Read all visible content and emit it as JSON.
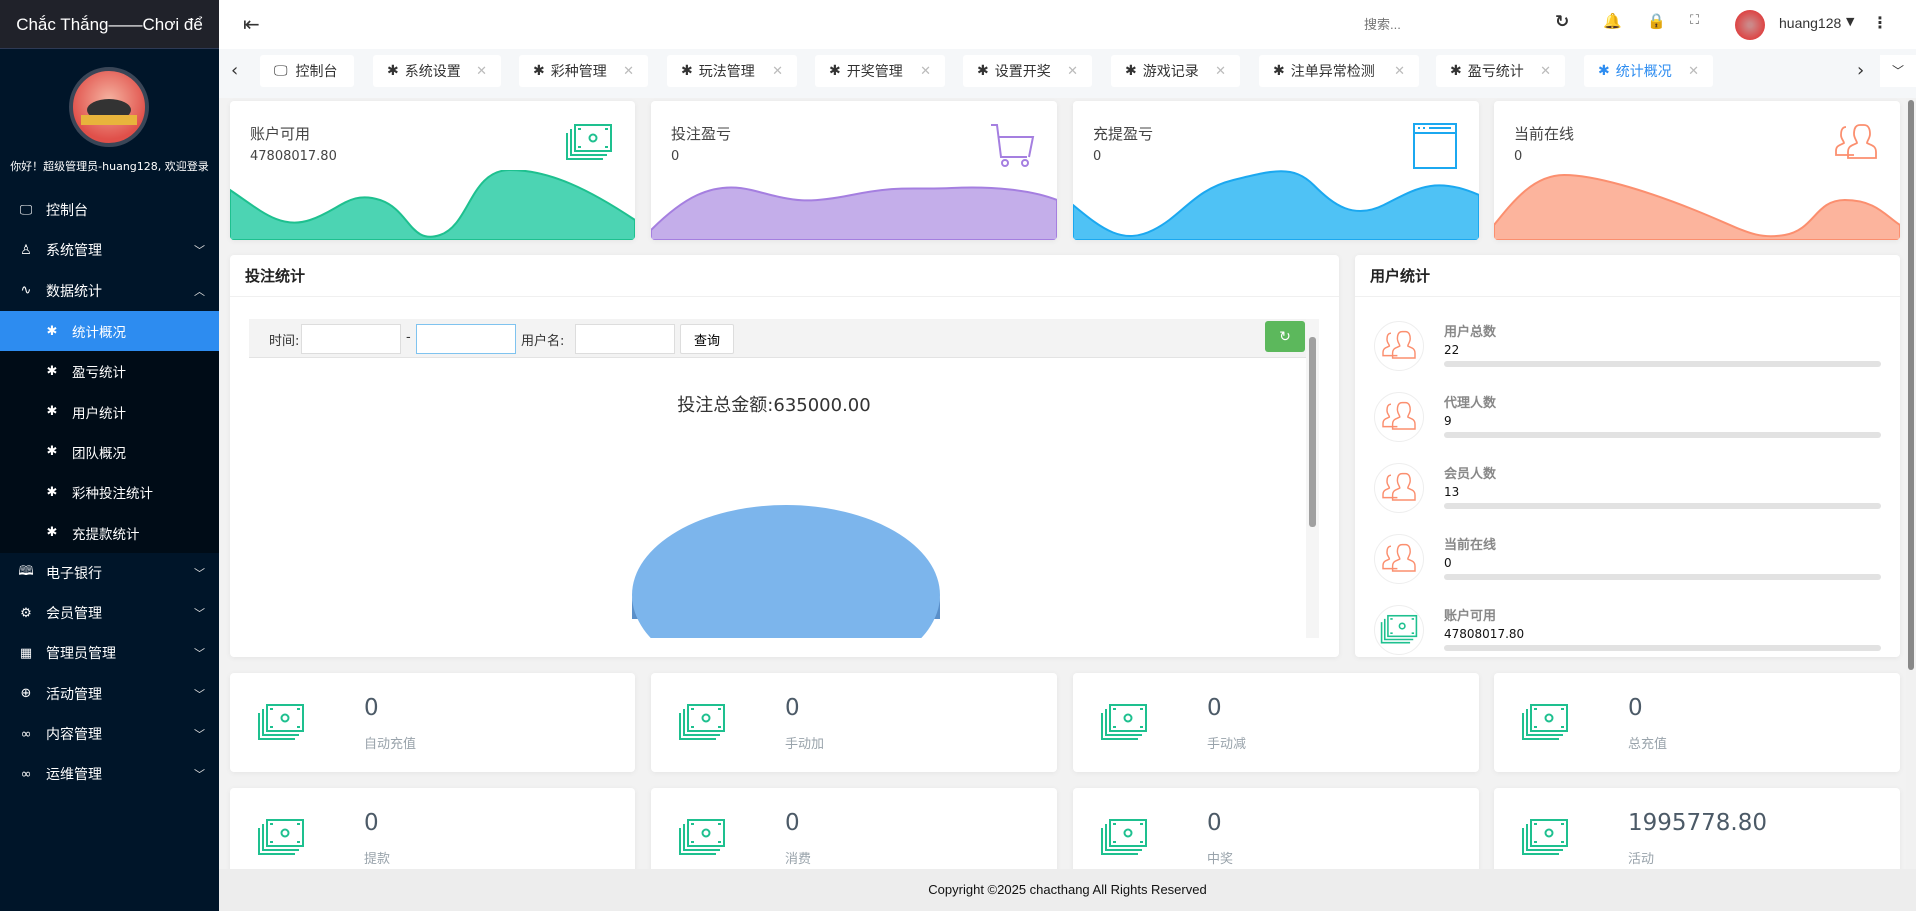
{
  "sidebar": {
    "brand": "Chắc Thắng——Chơi để",
    "greeting": "你好！超级管理员-huang128, 欢迎登录",
    "items": [
      {
        "label": "控制台",
        "icon": "monitor-icon"
      },
      {
        "label": "系统管理",
        "icon": "user-icon"
      },
      {
        "label": "数据统计",
        "icon": "pulse-icon"
      },
      {
        "label": "电子银行",
        "icon": "book-icon"
      },
      {
        "label": "会员管理",
        "icon": "gear-icon"
      },
      {
        "label": "管理员管理",
        "icon": "grid-icon"
      },
      {
        "label": "活动管理",
        "icon": "plus-circle-icon"
      },
      {
        "label": "内容管理",
        "icon": "infinity-icon"
      },
      {
        "label": "运维管理",
        "icon": "infinity-icon"
      }
    ],
    "sub_items": [
      "统计概况",
      "盈亏统计",
      "用户统计",
      "团队概况",
      "彩种投注统计",
      "充提款统计"
    ]
  },
  "header": {
    "search_placeholder": "搜索...",
    "username": "huang128"
  },
  "tabs": [
    "控制台",
    "系统设置",
    "彩种管理",
    "玩法管理",
    "开奖管理",
    "设置开奖",
    "游戏记录",
    "注单异常检测",
    "盈亏统计",
    "统计概况"
  ],
  "top_cards": [
    {
      "title": "账户可用",
      "value": "47808017.80",
      "color": "#1ec08f"
    },
    {
      "title": "投注盈亏",
      "value": "0",
      "color": "#a57fe0"
    },
    {
      "title": "充提盈亏",
      "value": "0",
      "color": "#1ba8f0"
    },
    {
      "title": "当前在线",
      "value": "0",
      "color": "#fb8f6f"
    }
  ],
  "bet_panel": {
    "title": "投注统计",
    "time_label": "时间:",
    "dash": "-",
    "username_label": "用户名:",
    "query_button": "查询",
    "total": "投注总金额:635000.00",
    "pie_color": "#7cb5ec"
  },
  "user_panel": {
    "title": "用户统计",
    "rows": [
      {
        "label": "用户总数",
        "value": "22"
      },
      {
        "label": "代理人数",
        "value": "9"
      },
      {
        "label": "会员人数",
        "value": "13"
      },
      {
        "label": "当前在线",
        "value": "0"
      },
      {
        "label": "账户可用",
        "value": "47808017.80"
      }
    ]
  },
  "bottom_cards": [
    {
      "value": "0",
      "label": "自动充值"
    },
    {
      "value": "0",
      "label": "手动加"
    },
    {
      "value": "0",
      "label": "手动减"
    },
    {
      "value": "0",
      "label": "总充值"
    },
    {
      "value": "0",
      "label": "提款"
    },
    {
      "value": "0",
      "label": "消费"
    },
    {
      "value": "0",
      "label": "中奖"
    },
    {
      "value": "1995778.80",
      "label": "活动"
    }
  ],
  "footer": "Copyright ©2025 chacthang All Rights Reserved"
}
